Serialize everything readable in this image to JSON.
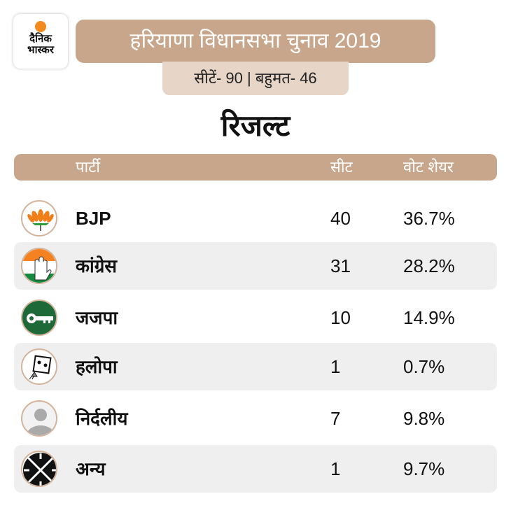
{
  "logo": {
    "line1": "दैनिक",
    "line2": "भास्कर"
  },
  "header": {
    "title": "हरियाणा विधानसभा चुनाव 2019",
    "subtitle": "सीटें- 90 | बहुमत- 46"
  },
  "result_title": "रिजल्ट",
  "table": {
    "columns": [
      "पार्टी",
      "सीट",
      "वोट शेयर"
    ],
    "rows": [
      {
        "party": "BJP",
        "seats": "40",
        "vote_share": "36.7%",
        "icon": "lotus-icon"
      },
      {
        "party": "कांग्रेस",
        "seats": "31",
        "vote_share": "28.2%",
        "icon": "hand-icon"
      },
      {
        "party": "जजपा",
        "seats": "10",
        "vote_share": "14.9%",
        "icon": "key-icon"
      },
      {
        "party": "हलोपा",
        "seats": "1",
        "vote_share": "0.7%",
        "icon": "kite-icon"
      },
      {
        "party": "निर्दलीय",
        "seats": "7",
        "vote_share": "9.8%",
        "icon": "person-icon"
      },
      {
        "party": "अन्य",
        "seats": "1",
        "vote_share": "9.7%",
        "icon": "swastika-icon"
      }
    ]
  }
}
